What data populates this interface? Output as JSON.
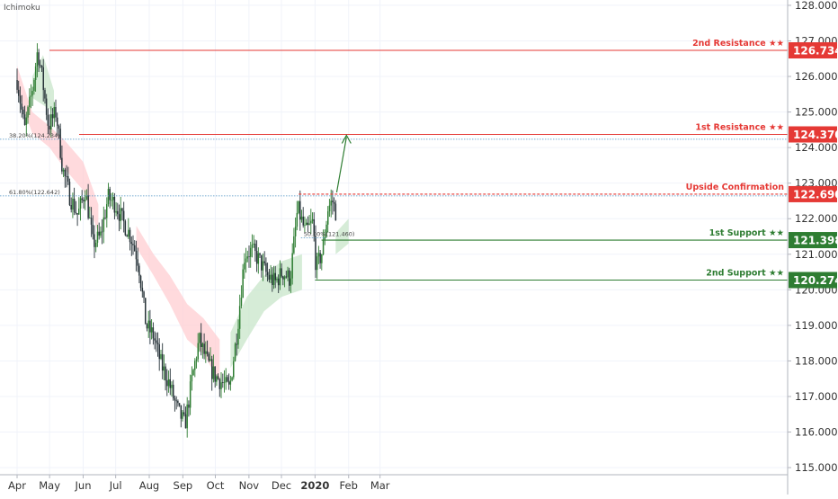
{
  "indicator_label": "Ichimoku",
  "colors": {
    "up": "#2e7d32",
    "down": "#263238",
    "resistance": "#e53935",
    "support": "#2e7d32",
    "fib": "#4a90c2",
    "cloud_bull": "#c8e6c9",
    "cloud_bear": "#ffcdd2",
    "axis_text": "#333333",
    "grid": "#f0f3fa"
  },
  "chart_data": {
    "type": "candlestick",
    "x_tick_labels": [
      "Apr",
      "May",
      "Jun",
      "Jul",
      "Aug",
      "Sep",
      "Oct",
      "Nov",
      "Dec",
      "2020",
      "Feb",
      "Mar"
    ],
    "y_ticks": [
      "115.000",
      "116.000",
      "117.000",
      "118.000",
      "119.000",
      "120.000",
      "121.000",
      "122.000",
      "123.000",
      "124.000",
      "125.000",
      "126.000",
      "127.000",
      "128.000"
    ],
    "ylim": [
      114.8,
      128.15
    ],
    "levels": [
      {
        "name": "2nd Resistance ★★",
        "value": "126.734",
        "kind": "resistance"
      },
      {
        "name": "1st Resistance ★★",
        "value": "124.370",
        "kind": "resistance"
      },
      {
        "name": "Upside Confirmation",
        "value": "122.690",
        "kind": "resistance"
      },
      {
        "name": "1st Support ★★",
        "value": "121.398",
        "kind": "support"
      },
      {
        "name": "2nd Support ★★",
        "value": "120.274",
        "kind": "support"
      }
    ],
    "fib_labels": [
      {
        "text": "38.20%(124.234)",
        "value": 124.234
      },
      {
        "text": "61.80%(122.642)",
        "value": 122.642
      },
      {
        "text": "50.00%(121.460)",
        "value": 121.46
      }
    ],
    "price_path": [
      [
        "2019-04-01",
        125.9
      ],
      [
        "2019-04-08",
        124.5
      ],
      [
        "2019-04-15",
        125.6
      ],
      [
        "2019-04-20",
        126.75
      ],
      [
        "2019-04-24",
        126.0
      ],
      [
        "2019-04-30",
        124.6
      ],
      [
        "2019-05-07",
        125.0
      ],
      [
        "2019-05-13",
        123.4
      ],
      [
        "2019-05-20",
        122.6
      ],
      [
        "2019-05-27",
        122.1
      ],
      [
        "2019-06-03",
        122.8
      ],
      [
        "2019-06-10",
        121.3
      ],
      [
        "2019-06-17",
        121.5
      ],
      [
        "2019-06-24",
        122.6
      ],
      [
        "2019-07-01",
        122.4
      ],
      [
        "2019-07-08",
        121.9
      ],
      [
        "2019-07-15",
        121.5
      ],
      [
        "2019-07-22",
        120.8
      ],
      [
        "2019-07-29",
        119.0
      ],
      [
        "2019-08-05",
        118.7
      ],
      [
        "2019-08-12",
        117.9
      ],
      [
        "2019-08-19",
        117.4
      ],
      [
        "2019-08-26",
        116.7
      ],
      [
        "2019-09-03",
        116.2
      ],
      [
        "2019-09-09",
        117.4
      ],
      [
        "2019-09-16",
        118.6
      ],
      [
        "2019-09-23",
        118.0
      ],
      [
        "2019-09-30",
        117.6
      ],
      [
        "2019-10-07",
        117.4
      ],
      [
        "2019-10-14",
        117.2
      ],
      [
        "2019-10-21",
        118.8
      ],
      [
        "2019-10-28",
        121.0
      ],
      [
        "2019-11-04",
        121.1
      ],
      [
        "2019-11-11",
        120.8
      ],
      [
        "2019-11-18",
        120.4
      ],
      [
        "2019-11-25",
        120.2
      ],
      [
        "2019-12-02",
        120.5
      ],
      [
        "2019-12-09",
        120.3
      ],
      [
        "2019-12-16",
        122.3
      ],
      [
        "2019-12-23",
        121.6
      ],
      [
        "2019-12-30",
        121.9
      ],
      [
        "2020-01-02",
        120.6
      ],
      [
        "2020-01-08",
        121.1
      ],
      [
        "2020-01-13",
        122.3
      ],
      [
        "2020-01-17",
        122.5
      ],
      [
        "2020-01-21",
        122.1
      ]
    ],
    "cloud_bear": [
      [
        [
          "2019-04-01",
          126.3
        ],
        [
          "2019-04-15",
          125.0
        ],
        [
          "2019-05-01",
          124.6
        ],
        [
          "2019-05-15",
          124.2
        ],
        [
          "2019-06-01",
          123.6
        ],
        [
          "2019-06-15",
          122.4
        ],
        [
          "2019-06-15",
          121.6
        ],
        [
          "2019-06-01",
          122.8
        ],
        [
          "2019-05-15",
          123.4
        ],
        [
          "2019-05-01",
          124.0
        ],
        [
          "2019-04-15",
          124.4
        ],
        [
          "2019-04-01",
          125.6
        ]
      ],
      [
        [
          "2019-07-20",
          121.8
        ],
        [
          "2019-08-05",
          121.0
        ],
        [
          "2019-08-20",
          120.4
        ],
        [
          "2019-09-05",
          119.6
        ],
        [
          "2019-09-20",
          119.2
        ],
        [
          "2019-10-05",
          118.6
        ],
        [
          "2019-10-05",
          117.4
        ],
        [
          "2019-09-20",
          118.2
        ],
        [
          "2019-09-05",
          118.6
        ],
        [
          "2019-08-20",
          119.6
        ],
        [
          "2019-08-05",
          120.4
        ],
        [
          "2019-07-20",
          121.2
        ]
      ]
    ],
    "cloud_bull": [
      [
        [
          "2019-04-15",
          126.0
        ],
        [
          "2019-04-25",
          126.6
        ],
        [
          "2019-05-05",
          125.6
        ],
        [
          "2019-05-05",
          125.0
        ],
        [
          "2019-04-25",
          125.2
        ],
        [
          "2019-04-15",
          125.4
        ]
      ],
      [
        [
          "2019-10-15",
          118.8
        ],
        [
          "2019-10-30",
          119.8
        ],
        [
          "2019-11-15",
          120.4
        ],
        [
          "2019-12-01",
          120.8
        ],
        [
          "2019-12-20",
          121.0
        ],
        [
          "2019-12-20",
          120.0
        ],
        [
          "2019-12-01",
          119.8
        ],
        [
          "2019-11-15",
          119.4
        ],
        [
          "2019-10-30",
          118.6
        ],
        [
          "2019-10-15",
          117.8
        ]
      ],
      [
        [
          "2020-01-20",
          121.6
        ],
        [
          "2020-02-01",
          122.0
        ],
        [
          "2020-02-01",
          121.3
        ],
        [
          "2020-01-20",
          121.0
        ]
      ]
    ],
    "projection_arrow": {
      "from": [
        "2020-01-21",
        122.69
      ],
      "to": [
        "2020-01-30",
        124.37
      ]
    }
  }
}
